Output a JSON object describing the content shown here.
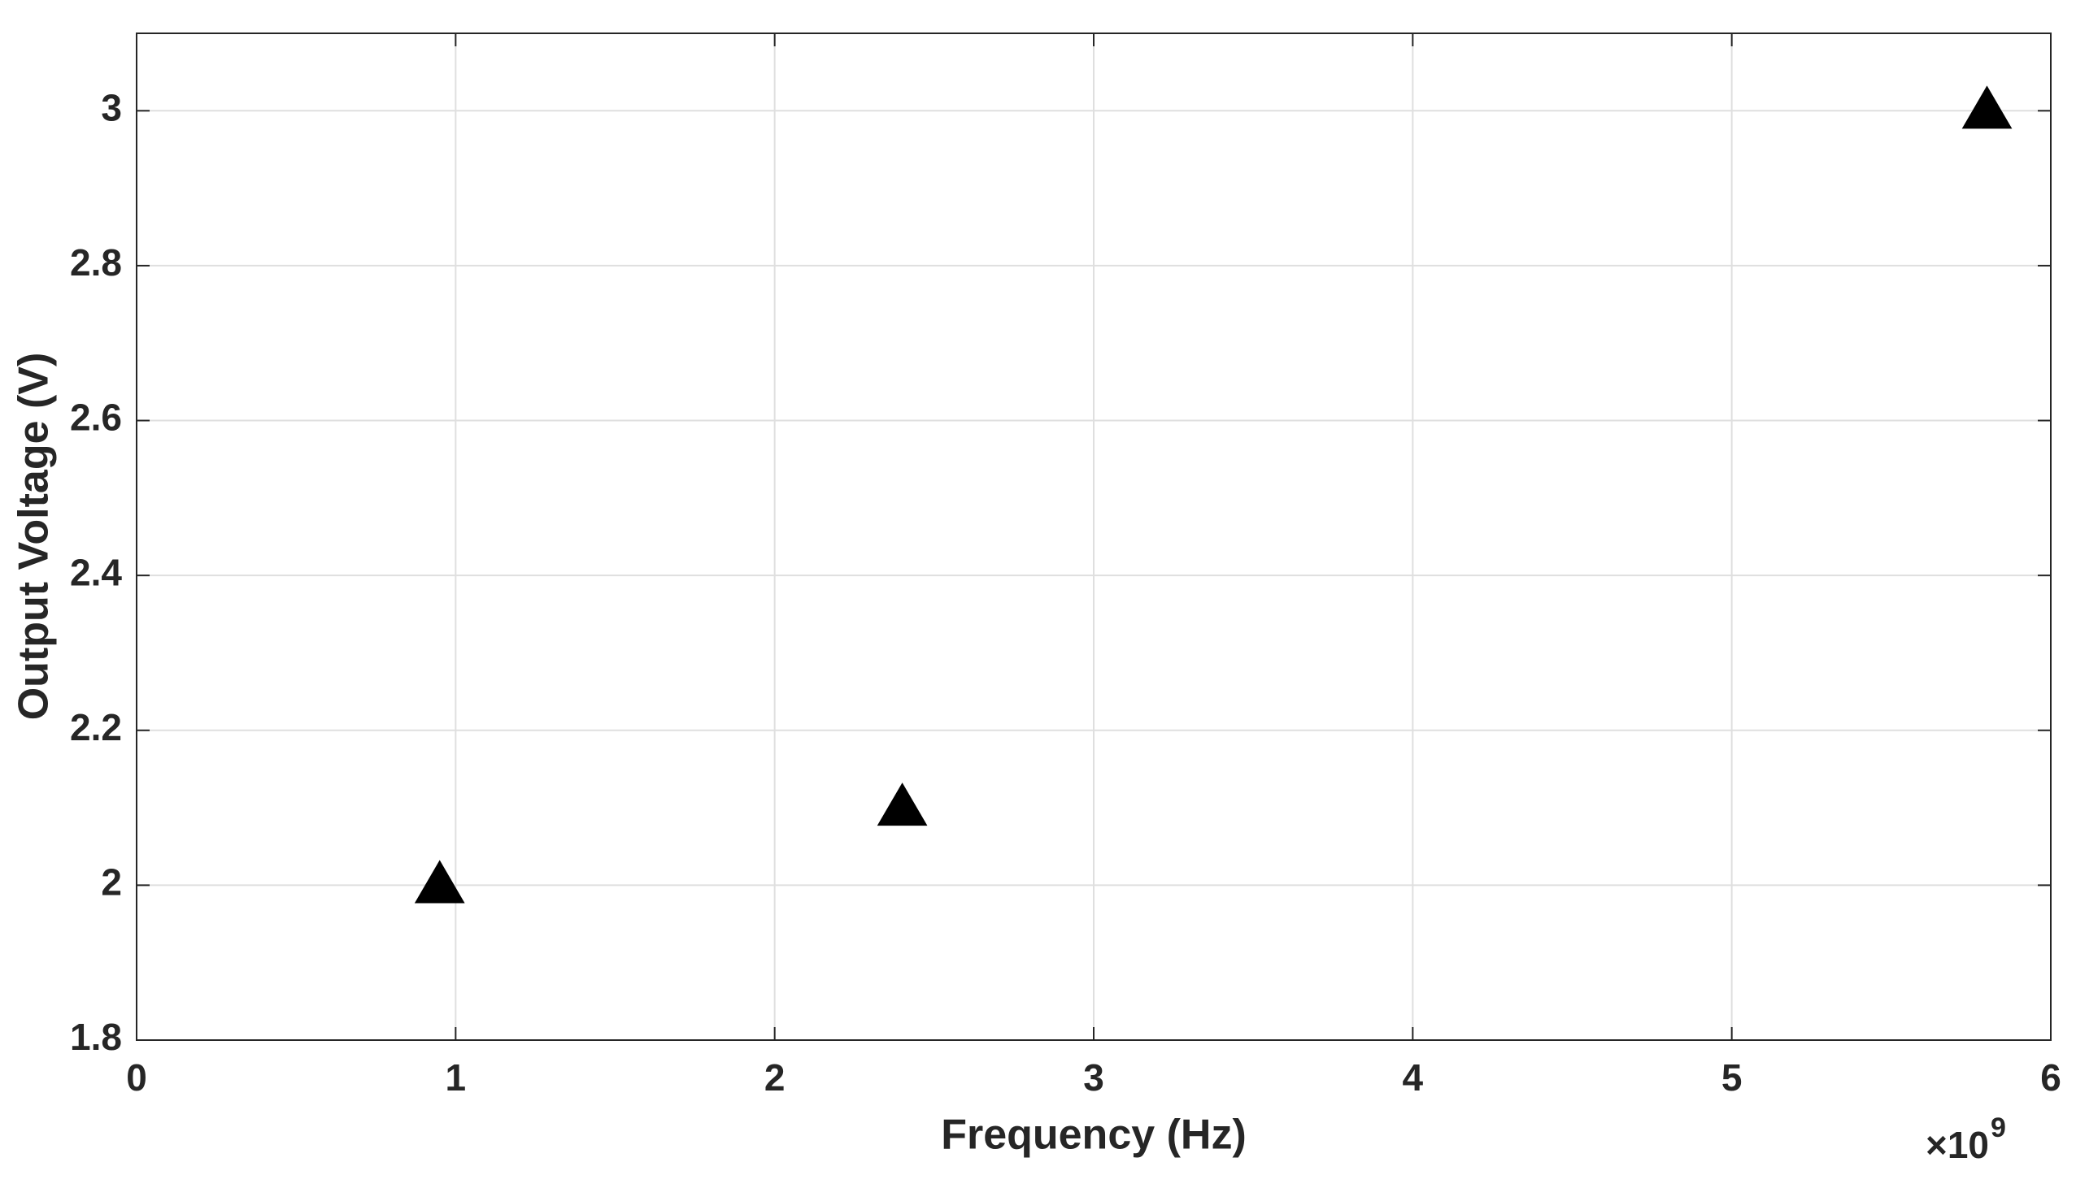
{
  "chart_data": {
    "type": "scatter",
    "x_label": "Frequency (Hz)",
    "y_label": "Output Voltage (V)",
    "x_scale_base": "×10",
    "x_scale_exponent": "9",
    "series": [
      {
        "color": "#000000",
        "marker": "triangle",
        "x": [
          0.95,
          2.4,
          5.8
        ],
        "values": [
          2.0,
          2.1,
          3.0
        ]
      }
    ],
    "xlim": [
      0,
      6
    ],
    "xticks": [
      0,
      1,
      2,
      3,
      4,
      5,
      6
    ],
    "ylim": [
      1.8,
      3.1
    ],
    "yticks": [
      1.8,
      2,
      2.2,
      2.4,
      2.6,
      2.8,
      3
    ],
    "grid": true
  }
}
